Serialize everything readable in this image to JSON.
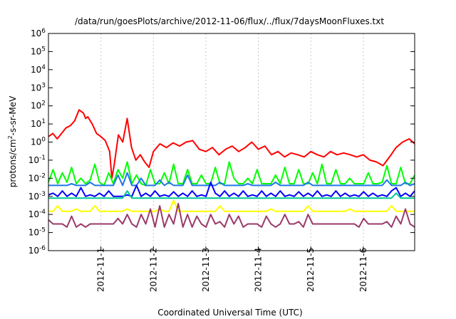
{
  "chart_data": {
    "type": "line",
    "title": "/data/run/goesPlots/archive/2012-11-06/flux/../flux/7daysMoonFluxes.txt",
    "xlabel": "Coordinated Universal Time (UTC)",
    "ylabel_prefix": "protons/cm",
    "ylabel_sup": "2",
    "ylabel_suffix": "-s-sr-MeV",
    "y_scale": "log",
    "ylim": [
      1e-06,
      1000000.0
    ],
    "y_ticks": [
      {
        "base": "10",
        "exp": "6",
        "value": 1000000.0
      },
      {
        "base": "10",
        "exp": "5",
        "value": 100000.0
      },
      {
        "base": "10",
        "exp": "4",
        "value": 10000.0
      },
      {
        "base": "10",
        "exp": "3",
        "value": 1000.0
      },
      {
        "base": "10",
        "exp": "2",
        "value": 100.0
      },
      {
        "base": "10",
        "exp": "1",
        "value": 10.0
      },
      {
        "base": "10",
        "exp": "0",
        "value": 1.0
      },
      {
        "base": "10",
        "exp": "-1",
        "value": 0.1
      },
      {
        "base": "10",
        "exp": "-2",
        "value": 0.01
      },
      {
        "base": "10",
        "exp": "-3",
        "value": 0.001
      },
      {
        "base": "10",
        "exp": "-4",
        "value": 0.0001
      },
      {
        "base": "10",
        "exp": "-5",
        "value": 1e-05
      },
      {
        "base": "10",
        "exp": "-6",
        "value": 1e-06
      }
    ],
    "x_ticks": [
      "2012-11-1",
      "2012-11-2",
      "2012-11-3",
      "2012-11-4",
      "2012-11-5",
      "2012-11-6"
    ],
    "xlim": [
      "2012-10-31T00:00",
      "2012-11-06T23:30"
    ],
    "grid": "vertical dashed at day ticks",
    "series": [
      {
        "color": "#ff0000",
        "x": [
          "2012-10-31T00:00",
          "2012-10-31T02:00",
          "2012-10-31T04:00",
          "2012-10-31T06:00",
          "2012-10-31T08:00",
          "2012-10-31T10:00",
          "2012-10-31T12:00",
          "2012-10-31T14:00",
          "2012-10-31T16:00",
          "2012-10-31T17:00",
          "2012-10-31T18:00",
          "2012-10-31T20:00",
          "2012-10-31T22:00",
          "2012-11-01T00:00",
          "2012-11-01T02:00",
          "2012-11-01T04:00",
          "2012-11-01T05:00",
          "2012-11-01T06:00",
          "2012-11-01T08:00",
          "2012-11-01T10:00",
          "2012-11-01T12:00",
          "2012-11-01T14:00",
          "2012-11-01T16:00",
          "2012-11-01T18:00",
          "2012-11-01T20:00",
          "2012-11-01T22:00",
          "2012-11-02T00:00",
          "2012-11-02T03:00",
          "2012-11-02T06:00",
          "2012-11-02T09:00",
          "2012-11-02T12:00",
          "2012-11-02T15:00",
          "2012-11-02T18:00",
          "2012-11-02T21:00",
          "2012-11-03T00:00",
          "2012-11-03T03:00",
          "2012-11-03T06:00",
          "2012-11-03T09:00",
          "2012-11-03T12:00",
          "2012-11-03T15:00",
          "2012-11-03T18:00",
          "2012-11-03T21:00",
          "2012-11-04T00:00",
          "2012-11-04T03:00",
          "2012-11-04T06:00",
          "2012-11-04T09:00",
          "2012-11-04T12:00",
          "2012-11-04T15:00",
          "2012-11-04T18:00",
          "2012-11-04T21:00",
          "2012-11-05T00:00",
          "2012-11-05T03:00",
          "2012-11-05T06:00",
          "2012-11-05T09:00",
          "2012-11-05T12:00",
          "2012-11-05T15:00",
          "2012-11-05T18:00",
          "2012-11-05T21:00",
          "2012-11-06T00:00",
          "2012-11-06T03:00",
          "2012-11-06T06:00",
          "2012-11-06T09:00",
          "2012-11-06T12:00",
          "2012-11-06T15:00",
          "2012-11-06T18:00",
          "2012-11-06T21:00",
          "2012-11-06T23:30"
        ],
        "values": [
          2,
          3,
          1.5,
          3,
          6,
          8,
          15,
          60,
          40,
          20,
          25,
          10,
          3,
          2,
          1.2,
          0.3,
          0.01,
          0.05,
          2.5,
          1,
          20,
          0.5,
          0.1,
          0.2,
          0.08,
          0.04,
          0.3,
          0.8,
          0.5,
          0.9,
          0.6,
          1,
          1.2,
          0.4,
          0.3,
          0.5,
          0.2,
          0.4,
          0.6,
          0.3,
          0.5,
          1,
          0.4,
          0.6,
          0.2,
          0.3,
          0.15,
          0.25,
          0.2,
          0.15,
          0.3,
          0.2,
          0.15,
          0.3,
          0.2,
          0.25,
          0.2,
          0.15,
          0.2,
          0.1,
          0.08,
          0.05,
          0.15,
          0.5,
          1,
          1.5,
          0.8
        ]
      },
      {
        "color": "#00ff00",
        "x_start": "2012-10-31T00:00",
        "x_end": "2012-11-06T23:30",
        "values": [
          0.006,
          0.03,
          0.005,
          0.02,
          0.006,
          0.04,
          0.005,
          0.01,
          0.005,
          0.008,
          0.06,
          0.006,
          0.004,
          0.02,
          0.005,
          0.03,
          0.01,
          0.08,
          0.005,
          0.015,
          0.005,
          0.004,
          0.03,
          0.005,
          0.005,
          0.02,
          0.005,
          0.06,
          0.005,
          0.005,
          0.03,
          0.005,
          0.005,
          0.015,
          0.005,
          0.005,
          0.04,
          0.005,
          0.005,
          0.08,
          0.01,
          0.005,
          0.005,
          0.01,
          0.005,
          0.03,
          0.005,
          0.005,
          0.005,
          0.015,
          0.005,
          0.04,
          0.005,
          0.005,
          0.03,
          0.005,
          0.005,
          0.02,
          0.005,
          0.06,
          0.005,
          0.005,
          0.03,
          0.005,
          0.005,
          0.01,
          0.005,
          0.005,
          0.005,
          0.02,
          0.005,
          0.005,
          0.006,
          0.05,
          0.005,
          0.005,
          0.04,
          0.005,
          0.005,
          0.015
        ]
      },
      {
        "color": "#1f77e8",
        "x_start": "2012-10-31T00:00",
        "x_end": "2012-11-06T23:30",
        "values": [
          0.004,
          0.004,
          0.004,
          0.004,
          0.004,
          0.005,
          0.004,
          0.004,
          0.004,
          0.006,
          0.004,
          0.004,
          0.004,
          0.004,
          0.004,
          0.015,
          0.004,
          0.02,
          0.004,
          0.004,
          0.01,
          0.004,
          0.004,
          0.004,
          0.008,
          0.004,
          0.006,
          0.004,
          0.004,
          0.004,
          0.015,
          0.004,
          0.004,
          0.004,
          0.004,
          0.004,
          0.004,
          0.006,
          0.004,
          0.004,
          0.004,
          0.004,
          0.004,
          0.005,
          0.004,
          0.004,
          0.004,
          0.004,
          0.004,
          0.006,
          0.004,
          0.004,
          0.004,
          0.004,
          0.004,
          0.004,
          0.006,
          0.004,
          0.004,
          0.004,
          0.004,
          0.004,
          0.004,
          0.004,
          0.004,
          0.004,
          0.004,
          0.004,
          0.004,
          0.004,
          0.004,
          0.004,
          0.004,
          0.008,
          0.004,
          0.004,
          0.004,
          0.006,
          0.004,
          0.005
        ]
      },
      {
        "color": "#0000ff",
        "x_start": "2012-10-31T00:00",
        "x_end": "2012-11-06T23:30",
        "values": [
          0.0012,
          0.0015,
          0.001,
          0.002,
          0.001,
          0.0015,
          0.001,
          0.003,
          0.001,
          0.0012,
          0.001,
          0.0015,
          0.001,
          0.002,
          0.001,
          0.001,
          0.001,
          0.0012,
          0.001,
          0.004,
          0.001,
          0.0015,
          0.001,
          0.002,
          0.001,
          0.0012,
          0.001,
          0.0018,
          0.001,
          0.0015,
          0.001,
          0.002,
          0.001,
          0.0012,
          0.001,
          0.006,
          0.0015,
          0.001,
          0.002,
          0.001,
          0.0015,
          0.001,
          0.002,
          0.001,
          0.0012,
          0.001,
          0.002,
          0.001,
          0.0015,
          0.001,
          0.002,
          0.001,
          0.0012,
          0.001,
          0.0018,
          0.001,
          0.0015,
          0.001,
          0.002,
          0.001,
          0.0012,
          0.001,
          0.002,
          0.001,
          0.0015,
          0.001,
          0.0012,
          0.001,
          0.0018,
          0.001,
          0.0015,
          0.001,
          0.0012,
          0.001,
          0.002,
          0.003,
          0.001,
          0.0015,
          0.001,
          0.002
        ]
      },
      {
        "color": "#00c896",
        "x_start": "2012-10-31T00:00",
        "x_end": "2012-11-06T23:30",
        "values": [
          0.0008,
          0.0008,
          0.0008,
          0.0008,
          0.0008,
          0.0008,
          0.0008,
          0.0008,
          0.0008,
          0.0008,
          0.0008,
          0.0008,
          0.0008,
          0.0008,
          0.0008,
          0.0008,
          0.0008,
          0.002,
          0.0008,
          0.0008,
          0.0008,
          0.0008,
          0.0008,
          0.0008,
          0.0008,
          0.0008,
          0.0008,
          0.0008,
          0.0008,
          0.0008,
          0.0008,
          0.0008,
          0.0008,
          0.0008,
          0.0008,
          0.0008,
          0.0008,
          0.0008,
          0.0008,
          0.0008,
          0.0008,
          0.0008,
          0.0008,
          0.0008,
          0.0008,
          0.0008,
          0.0008,
          0.0008,
          0.0008,
          0.0008,
          0.0008,
          0.0008,
          0.0008,
          0.0008,
          0.0008,
          0.0008,
          0.0008,
          0.0008,
          0.0008,
          0.0008,
          0.0008,
          0.0008,
          0.0008,
          0.0008,
          0.0008,
          0.0008,
          0.0008,
          0.0008,
          0.0008,
          0.0008,
          0.0008,
          0.0008,
          0.0008,
          0.0008,
          0.0008,
          0.0015,
          0.0008,
          0.0008,
          0.0008,
          0.0008
        ]
      },
      {
        "color": "#ffff00",
        "x_start": "2012-10-31T00:00",
        "x_end": "2012-11-06T23:30",
        "values": [
          0.00015,
          0.00015,
          0.0003,
          0.00015,
          0.00015,
          0.00015,
          0.0002,
          0.00015,
          0.00015,
          0.00015,
          0.0003,
          0.00015,
          0.00015,
          0.00015,
          0.00015,
          0.00015,
          0.00015,
          0.0002,
          0.00015,
          0.00015,
          0.00015,
          0.00015,
          0.00015,
          0.00015,
          0.0002,
          0.00015,
          0.00015,
          0.0006,
          0.00015,
          0.00015,
          0.00015,
          0.00015,
          0.00015,
          0.00015,
          0.00015,
          0.00015,
          0.00015,
          0.0003,
          0.00015,
          0.00015,
          0.00015,
          0.00015,
          0.00015,
          0.00015,
          0.00015,
          0.00015,
          0.00015,
          0.00015,
          0.0002,
          0.00015,
          0.00015,
          0.00015,
          0.00015,
          0.00015,
          0.00015,
          0.00015,
          0.0003,
          0.00015,
          0.00015,
          0.00015,
          0.00015,
          0.00015,
          0.00015,
          0.00015,
          0.00015,
          0.0002,
          0.00015,
          0.00015,
          0.00015,
          0.00015,
          0.00015,
          0.00015,
          0.00015,
          0.00015,
          0.0003,
          0.00015,
          0.00015,
          0.00015,
          0.00015,
          0.00015
        ]
      },
      {
        "color": "#9a3a6a",
        "x_start": "2012-10-31T00:00",
        "x_end": "2012-11-06T23:30",
        "values": [
          5e-05,
          3e-05,
          3e-05,
          3e-05,
          2e-05,
          8e-05,
          2e-05,
          3e-05,
          2e-05,
          3e-05,
          3e-05,
          3e-05,
          3e-05,
          3e-05,
          3e-05,
          6e-05,
          3e-05,
          0.0001,
          3e-05,
          2e-05,
          0.0001,
          3e-05,
          0.0002,
          2e-05,
          0.0003,
          2e-05,
          0.0001,
          3e-05,
          0.0004,
          2e-05,
          0.0001,
          2e-05,
          8e-05,
          3e-05,
          2e-05,
          0.0001,
          3e-05,
          4e-05,
          2e-05,
          0.0001,
          3e-05,
          8e-05,
          2e-05,
          3e-05,
          3e-05,
          3e-05,
          2e-05,
          8e-05,
          3e-05,
          2e-05,
          3e-05,
          0.0001,
          3e-05,
          3e-05,
          4e-05,
          2e-05,
          0.0001,
          3e-05,
          3e-05,
          3e-05,
          3e-05,
          3e-05,
          3e-05,
          3e-05,
          3e-05,
          3e-05,
          3e-05,
          2e-05,
          6e-05,
          3e-05,
          3e-05,
          3e-05,
          3e-05,
          4e-05,
          2e-05,
          8e-05,
          3e-05,
          0.0002,
          3e-05,
          2e-05
        ]
      }
    ]
  }
}
